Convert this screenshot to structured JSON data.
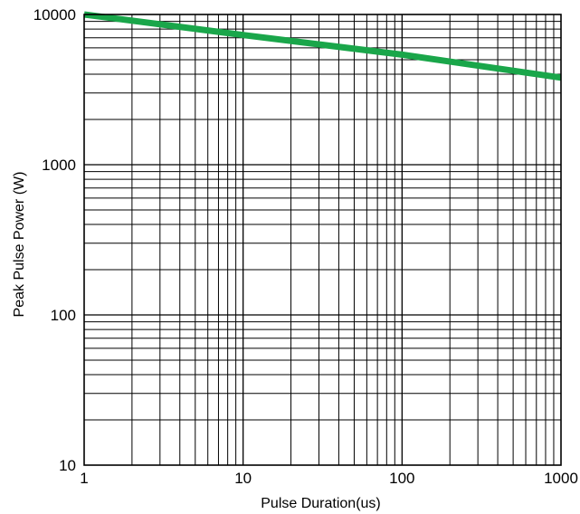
{
  "chart_data": {
    "type": "line",
    "title": "",
    "xlabel": "Pulse Duration(us)",
    "ylabel": "Peak Pulse Power (W)",
    "x_scale": "log",
    "y_scale": "log",
    "xlim": [
      1,
      1000
    ],
    "ylim": [
      10,
      10000
    ],
    "x_ticks": [
      {
        "value": 1,
        "label": "1"
      },
      {
        "value": 10,
        "label": "10"
      },
      {
        "value": 100,
        "label": "100"
      },
      {
        "value": 1000,
        "label": "1000"
      }
    ],
    "y_ticks": [
      {
        "value": 10,
        "label": "10"
      },
      {
        "value": 100,
        "label": "100"
      },
      {
        "value": 1000,
        "label": "1000"
      },
      {
        "value": 10000,
        "label": "10000"
      }
    ],
    "grid": true,
    "legend": "none",
    "series": [
      {
        "color": "#1aa64a",
        "x": [
          1,
          10,
          100,
          1000
        ],
        "y": [
          10000,
          7300,
          5400,
          3800
        ]
      }
    ]
  }
}
